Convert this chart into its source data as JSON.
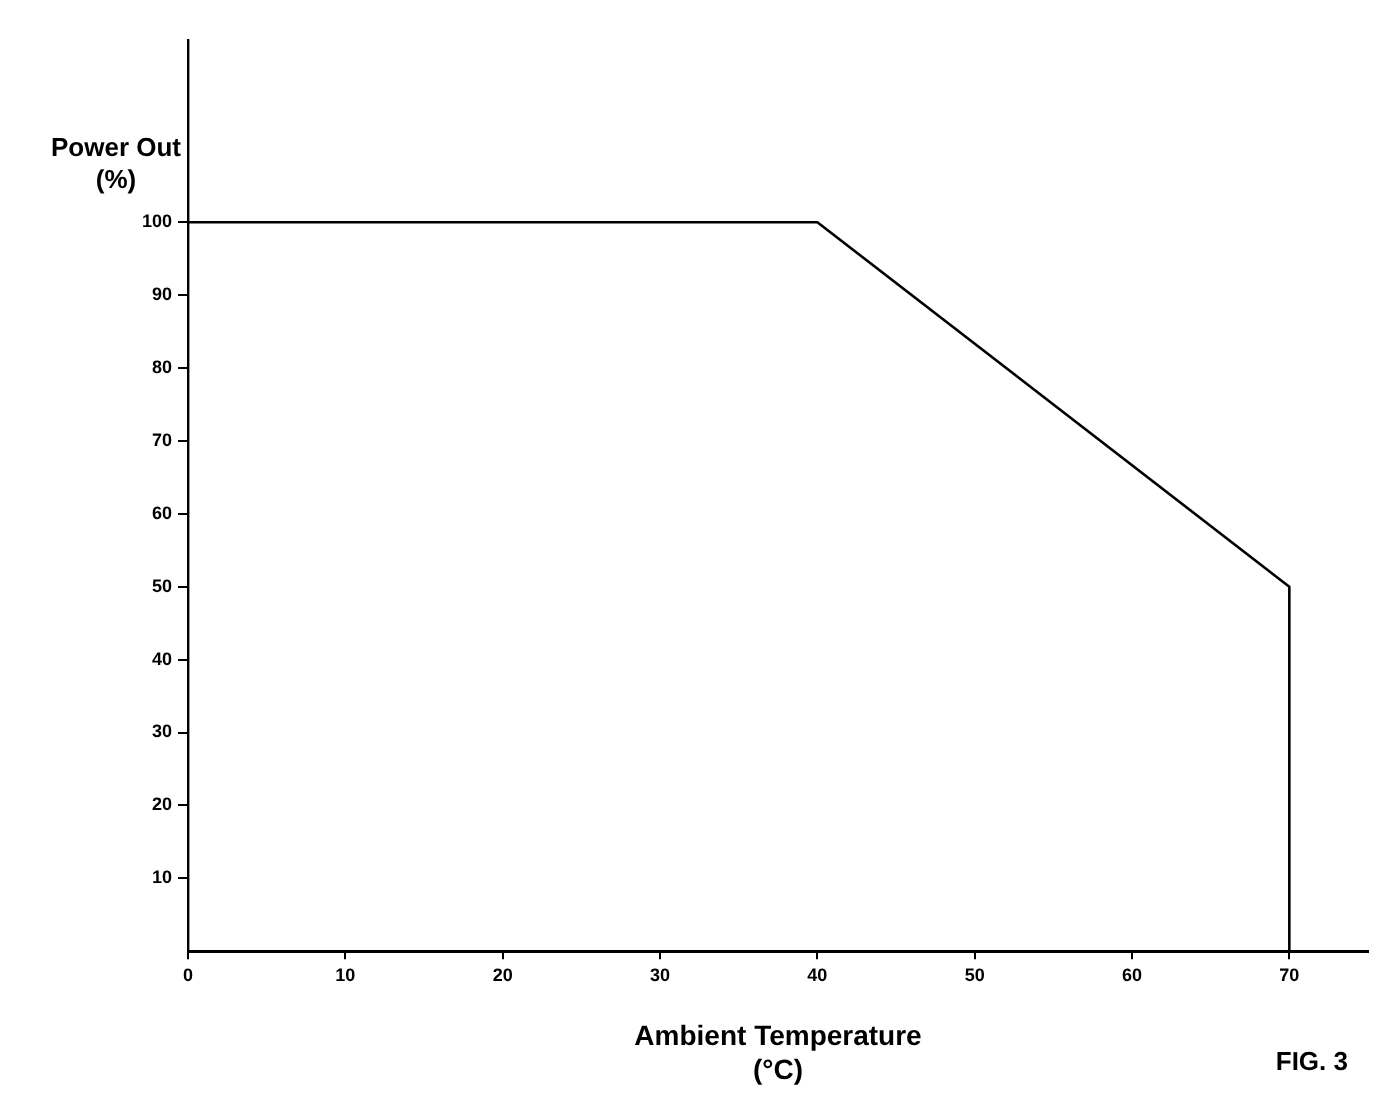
{
  "chart_data": {
    "type": "line",
    "xlabel": "Ambient Temperature\n(°C)",
    "ylabel": "Power Out\n(%)",
    "x": [
      0,
      40,
      70,
      70
    ],
    "series": [
      {
        "color": "#000000",
        "values": [
          100,
          100,
          50,
          0
        ]
      }
    ],
    "xlim": [
      0,
      75
    ],
    "xticks": [
      0,
      10,
      20,
      30,
      40,
      50,
      60,
      70
    ],
    "ylim": [
      0,
      125
    ],
    "yticks": [
      10,
      20,
      30,
      40,
      50,
      60,
      70,
      80,
      90,
      100
    ],
    "grid": false,
    "legend": false,
    "marker": "none",
    "line_style": "solid",
    "annotations": [
      "FIG. 3"
    ]
  }
}
